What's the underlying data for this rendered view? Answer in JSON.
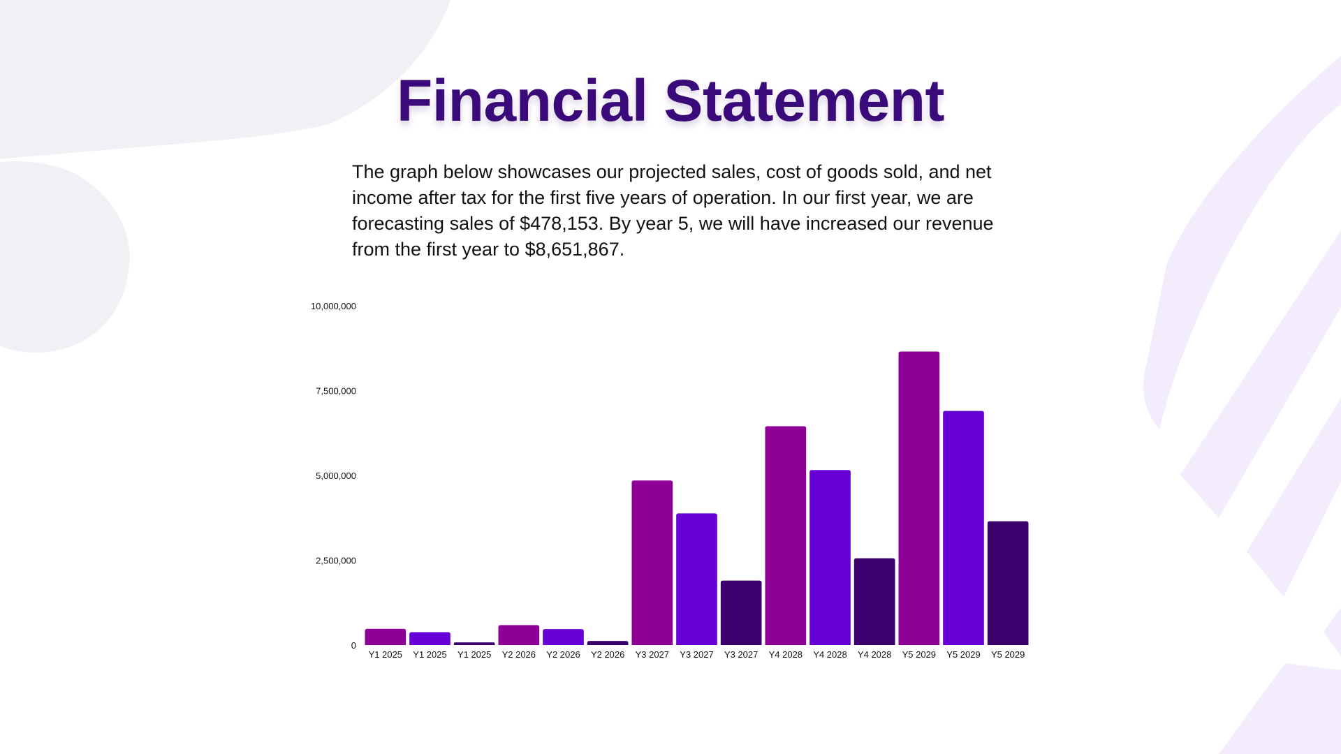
{
  "title": "Financial Statement",
  "description": "The graph below showcases our projected sales, cost of goods sold, and net income after tax for the first five years of operation. In our first year, we are forecasting sales of $478,153. By year 5, we will have increased our revenue from the first year to $8,651,867.",
  "colors": {
    "title": "#3a0a7a",
    "sales": "#8f0096",
    "cogs": "#6600d6",
    "net_income": "#3b006b",
    "decor_light": "#f2f0f5",
    "decor_lavender": "#f3ecfc"
  },
  "chart_data": {
    "type": "bar",
    "title": "",
    "xlabel": "",
    "ylabel": "",
    "ylim": [
      0,
      10000000
    ],
    "yticks": [
      {
        "value": 0,
        "label": "0"
      },
      {
        "value": 2500000,
        "label": "2,500,000"
      },
      {
        "value": 5000000,
        "label": "5,000,000"
      },
      {
        "value": 7500000,
        "label": "7,500,000"
      },
      {
        "value": 10000000,
        "label": "10,000,000"
      }
    ],
    "grid": false,
    "legend": "none",
    "bars": [
      {
        "label": "Y1 2025",
        "value": 478153,
        "color": "#8f0096"
      },
      {
        "label": "Y1 2025",
        "value": 380000,
        "color": "#6600d6"
      },
      {
        "label": "Y1 2025",
        "value": 80000,
        "color": "#3b006b"
      },
      {
        "label": "Y2 2026",
        "value": 590000,
        "color": "#8f0096"
      },
      {
        "label": "Y2 2026",
        "value": 470000,
        "color": "#6600d6"
      },
      {
        "label": "Y2 2026",
        "value": 120000,
        "color": "#3b006b"
      },
      {
        "label": "Y3 2027",
        "value": 4850000,
        "color": "#8f0096"
      },
      {
        "label": "Y3 2027",
        "value": 3880000,
        "color": "#6600d6"
      },
      {
        "label": "Y3 2027",
        "value": 1900000,
        "color": "#3b006b"
      },
      {
        "label": "Y4 2028",
        "value": 6450000,
        "color": "#8f0096"
      },
      {
        "label": "Y4 2028",
        "value": 5160000,
        "color": "#6600d6"
      },
      {
        "label": "Y4 2028",
        "value": 2560000,
        "color": "#3b006b"
      },
      {
        "label": "Y5 2029",
        "value": 8651867,
        "color": "#8f0096"
      },
      {
        "label": "Y5 2029",
        "value": 6900000,
        "color": "#6600d6"
      },
      {
        "label": "Y5 2029",
        "value": 3650000,
        "color": "#3b006b"
      }
    ]
  }
}
